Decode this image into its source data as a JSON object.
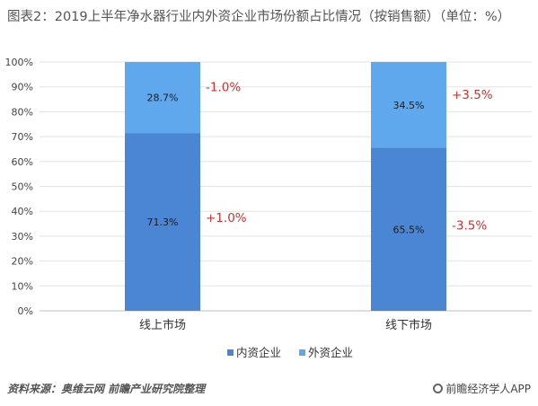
{
  "title": "图表2：2019上半年净水器行业内外资企业市场份额占比情况（按销售额）（单位：%）",
  "chart_data": {
    "type": "stacked-bar",
    "title": "图表2：2019上半年净水器行业内外资企业市场份额占比情况（按销售额）（单位：%）",
    "categories": [
      "线上市场",
      "线下市场"
    ],
    "series": [
      {
        "name": "内资企业",
        "values": [
          71.3,
          65.5
        ],
        "value_labels": [
          "71.3%",
          "65.5%"
        ],
        "color": "#4a86d4"
      },
      {
        "name": "外资企业",
        "values": [
          28.7,
          34.5
        ],
        "value_labels": [
          "28.7%",
          "34.5%"
        ],
        "color": "#5fa8ee"
      }
    ],
    "annotations": [
      {
        "category": "线上市场",
        "series": "内资企业",
        "text": "+1.0%"
      },
      {
        "category": "线上市场",
        "series": "外资企业",
        "text": "-1.0%"
      },
      {
        "category": "线下市场",
        "series": "内资企业",
        "text": "-3.5%"
      },
      {
        "category": "线下市场",
        "series": "外资企业",
        "text": "+3.5%"
      }
    ],
    "y_ticks": [
      "0%",
      "10%",
      "20%",
      "30%",
      "40%",
      "50%",
      "60%",
      "70%",
      "80%",
      "90%",
      "100%"
    ],
    "ylim": [
      0,
      100
    ],
    "annotation_color": "#d0312d",
    "grid": true,
    "legend_position": "bottom"
  },
  "footer": {
    "source": "资料来源：奥维云网 前瞻产业研究院整理",
    "brand": "前瞻经济学人APP"
  }
}
